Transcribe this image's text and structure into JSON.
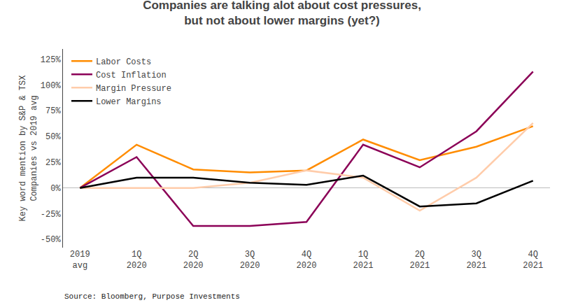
{
  "chart_data": {
    "type": "line",
    "title": "Companies are talking alot about cost pressures,\nbut not about lower margins (yet?)",
    "y_label": "Key word mention by S&P & TSX\nCompanies vs 2019 avg",
    "annotations": [
      "Source: Bloomberg, Purpose Investments"
    ],
    "categories": [
      "2019\navg",
      "1Q\n2020",
      "2Q\n2020",
      "3Q\n2020",
      "4Q\n2020",
      "1Q\n2021",
      "2Q\n2021",
      "3Q\n2021",
      "4Q\n2021"
    ],
    "series": [
      {
        "name": "Labor Costs",
        "color": "#FF8C00",
        "values": [
          0,
          42,
          18,
          15,
          17,
          47,
          27,
          40,
          60
        ]
      },
      {
        "name": "Cost Inflation",
        "color": "#8B0057",
        "values": [
          0,
          30,
          -37,
          -37,
          -33,
          42,
          20,
          55,
          113
        ]
      },
      {
        "name": "Margin Pressure",
        "color": "#FFCCAA",
        "values": [
          0,
          0,
          0,
          5,
          17,
          10,
          -22,
          10,
          63
        ]
      },
      {
        "name": "Lower Margins",
        "color": "#000000",
        "values": [
          0,
          10,
          10,
          5,
          3,
          12,
          -18,
          -15,
          7
        ]
      }
    ],
    "ylim": [
      -58,
      135
    ],
    "yticks": [
      {
        "value": -50,
        "label": "-50%"
      },
      {
        "value": -25,
        "label": "-25%"
      },
      {
        "value": 0,
        "label": "0%"
      },
      {
        "value": 25,
        "label": "25%"
      },
      {
        "value": 50,
        "label": "50%"
      },
      {
        "value": 75,
        "label": "75%"
      },
      {
        "value": 100,
        "label": "100%"
      },
      {
        "value": 125,
        "label": "125%"
      }
    ],
    "grid": false,
    "legend": "upper left"
  }
}
